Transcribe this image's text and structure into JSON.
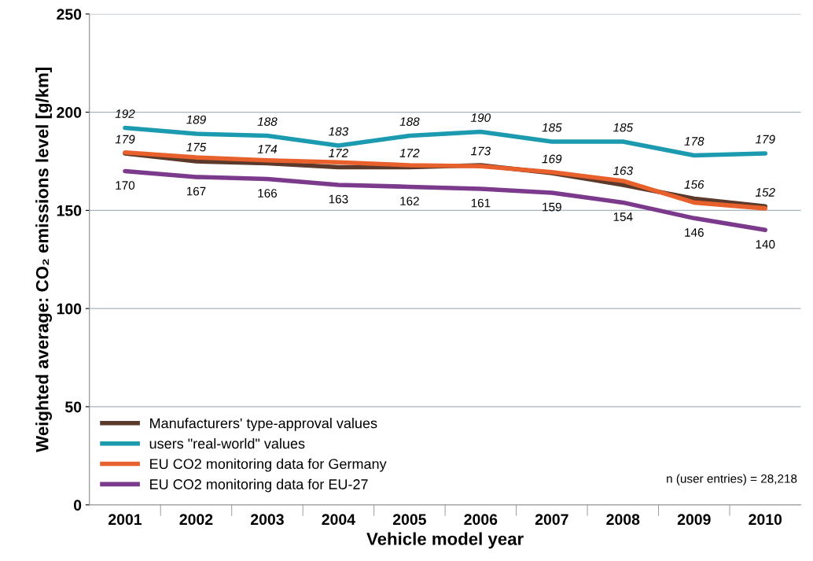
{
  "chart_data": {
    "type": "line",
    "xlabel": "Vehicle model year",
    "ylabel": "Weighted average: CO₂ emissions level [g/km]",
    "categories": [
      "2001",
      "2002",
      "2003",
      "2004",
      "2005",
      "2006",
      "2007",
      "2008",
      "2009",
      "2010"
    ],
    "series": [
      {
        "name": "Manufacturers' type-approval values",
        "color": "#5b3a2b",
        "values": [
          179,
          175,
          174,
          172,
          172,
          173,
          169,
          163,
          156,
          152
        ],
        "value_labels": [
          "179",
          "175",
          "174",
          "172",
          "172",
          "173",
          "169",
          "163",
          "156",
          "152"
        ]
      },
      {
        "name": "users \"real-world\" values",
        "color": "#1b9ab0",
        "values": [
          192,
          189,
          188,
          183,
          188,
          190,
          185,
          185,
          178,
          179
        ],
        "value_labels": [
          "192",
          "189",
          "188",
          "183",
          "188",
          "190",
          "185",
          "185",
          "178",
          "179"
        ]
      },
      {
        "name": "EU CO2 monitoring data for Germany",
        "color": "#e8612c",
        "values": [
          179.5,
          177,
          175.5,
          174.5,
          173,
          172.5,
          169.5,
          165,
          154,
          151
        ]
      },
      {
        "name": "EU CO2 monitoring data for EU-27",
        "color": "#7b3a8c",
        "values": [
          170,
          167,
          166,
          163,
          162,
          161,
          159,
          154,
          146,
          140
        ],
        "value_labels": [
          "170",
          "167",
          "166",
          "163",
          "162",
          "161",
          "159",
          "154",
          "146",
          "140"
        ]
      }
    ],
    "ylim": [
      0,
      250
    ],
    "yticks": [
      0,
      50,
      100,
      150,
      200,
      250
    ],
    "grid": "y",
    "legend": "bottom left",
    "marker": "none",
    "line_style": "solid",
    "annotations": [
      "n (user entries) = 28,218"
    ]
  }
}
